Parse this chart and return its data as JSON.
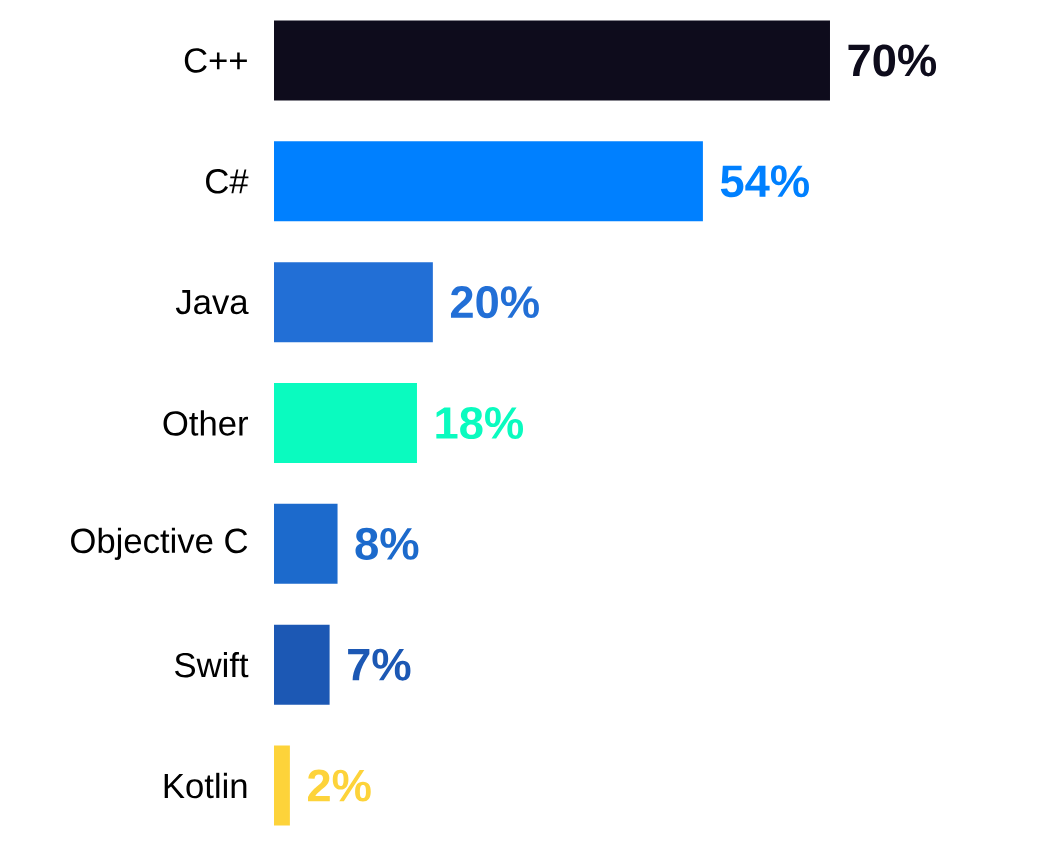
{
  "chart_data": {
    "type": "bar",
    "orientation": "horizontal",
    "categories": [
      "C++",
      "C#",
      "Java",
      "Other",
      "Objective C",
      "Swift",
      "Kotlin"
    ],
    "values": [
      70,
      54,
      20,
      18,
      8,
      7,
      2
    ],
    "colors": [
      "#0e0c1c",
      "#0080ff",
      "#226fd6",
      "#0afbbf",
      "#1c6acc",
      "#1c58b4",
      "#fdd33a"
    ],
    "value_labels": [
      "70%",
      "54%",
      "20%",
      "18%",
      "8%",
      "7%",
      "2%"
    ],
    "tick_labels": "y"
  }
}
